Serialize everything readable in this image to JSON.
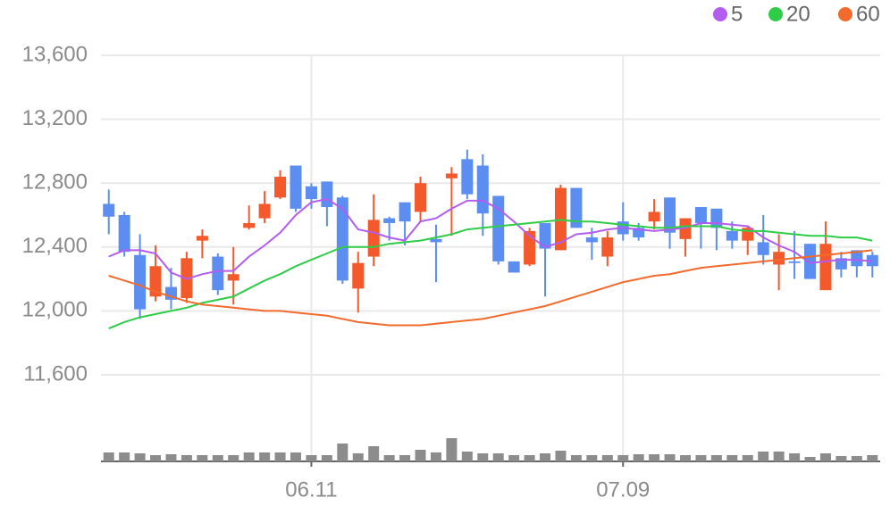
{
  "chart_data": {
    "type": "candlestick",
    "categories": [
      null,
      null,
      null,
      null,
      null,
      null,
      null,
      null,
      null,
      null,
      null,
      null,
      null,
      "06.11",
      null,
      null,
      null,
      null,
      null,
      null,
      null,
      null,
      null,
      null,
      null,
      null,
      null,
      null,
      null,
      null,
      null,
      null,
      null,
      "07.09",
      null,
      null,
      null,
      null,
      null,
      null,
      null,
      null,
      null,
      null,
      null,
      null,
      null,
      null,
      null,
      null
    ],
    "open": [
      12670,
      12600,
      12350,
      12090,
      12150,
      12080,
      12440,
      12340,
      12190,
      12520,
      12580,
      12710,
      12910,
      12780,
      12810,
      12710,
      12140,
      12340,
      12580,
      12680,
      12620,
      12450,
      12830,
      12950,
      12910,
      12720,
      12310,
      12290,
      12550,
      12380,
      12770,
      12460,
      12340,
      12560,
      12520,
      12560,
      12710,
      12450,
      12650,
      12640,
      12500,
      12440,
      12430,
      12290,
      12310,
      12420,
      12130,
      12330,
      12380,
      12350
    ],
    "high": [
      12760,
      12620,
      12480,
      12410,
      12270,
      12370,
      12510,
      12360,
      12400,
      12660,
      12750,
      12880,
      12910,
      12800,
      12810,
      12720,
      12370,
      12730,
      12590,
      12680,
      12840,
      12540,
      12900,
      13010,
      12980,
      12720,
      12310,
      12520,
      12550,
      12790,
      12770,
      12520,
      12500,
      12680,
      12550,
      12700,
      12710,
      12580,
      12650,
      12640,
      12560,
      12530,
      12600,
      12480,
      12500,
      12420,
      12560,
      12370,
      12380,
      12370
    ],
    "low": [
      12480,
      12340,
      11950,
      12060,
      12010,
      12050,
      12330,
      12100,
      12040,
      12510,
      12550,
      12700,
      12620,
      12640,
      12530,
      12170,
      11990,
      12280,
      12440,
      12410,
      12560,
      12180,
      12470,
      12700,
      12470,
      12290,
      12240,
      12280,
      12090,
      12380,
      12520,
      12320,
      12280,
      12440,
      12440,
      12510,
      12390,
      12340,
      12390,
      12380,
      12390,
      12350,
      12290,
      12130,
      12200,
      12200,
      12130,
      12210,
      12210,
      12210
    ],
    "close": [
      12590,
      12370,
      12010,
      12280,
      12070,
      12330,
      12470,
      12130,
      12230,
      12550,
      12670,
      12840,
      12640,
      12700,
      12650,
      12190,
      12300,
      12570,
      12550,
      12560,
      12800,
      12430,
      12860,
      12730,
      12610,
      12310,
      12240,
      12500,
      12390,
      12770,
      12520,
      12430,
      12460,
      12480,
      12460,
      12620,
      12490,
      12580,
      12550,
      12520,
      12440,
      12520,
      12350,
      12370,
      12300,
      12200,
      12420,
      12260,
      12280,
      12280
    ],
    "up_color": "#f4592c",
    "down_color": "#5b8ef0",
    "series": [
      {
        "name": "5",
        "color": "#b35cf0",
        "values": [
          12340,
          12380,
          12380,
          12360,
          12240,
          12200,
          12230,
          12250,
          12250,
          12340,
          12410,
          12490,
          12600,
          12680,
          12700,
          12640,
          12510,
          12490,
          12460,
          12440,
          12560,
          12580,
          12640,
          12690,
          12690,
          12640,
          12560,
          12470,
          12400,
          12430,
          12480,
          12490,
          12510,
          12520,
          12510,
          12500,
          12510,
          12520,
          12550,
          12550,
          12540,
          12530,
          12460,
          12410,
          12370,
          12300,
          12310,
          12320,
          12320,
          12310
        ]
      },
      {
        "name": "20",
        "color": "#2fcc48",
        "values": [
          11890,
          11930,
          11960,
          11980,
          12000,
          12020,
          12050,
          12070,
          12090,
          12140,
          12190,
          12230,
          12280,
          12320,
          12360,
          12400,
          12400,
          12400,
          12420,
          12430,
          12440,
          12460,
          12480,
          12510,
          12520,
          12530,
          12540,
          12550,
          12560,
          12570,
          12560,
          12560,
          12550,
          12540,
          12530,
          12520,
          12520,
          12530,
          12530,
          12530,
          12510,
          12500,
          12500,
          12490,
          12480,
          12470,
          12470,
          12460,
          12460,
          12440
        ]
      },
      {
        "name": "60",
        "color": "#f26a2c",
        "values": [
          12220,
          12190,
          12160,
          12120,
          12090,
          12060,
          12040,
          12030,
          12020,
          12010,
          12000,
          12000,
          11990,
          11980,
          11970,
          11950,
          11930,
          11920,
          11910,
          11910,
          11910,
          11920,
          11930,
          11940,
          11950,
          11970,
          11990,
          12010,
          12030,
          12060,
          12090,
          12120,
          12150,
          12180,
          12200,
          12220,
          12230,
          12250,
          12270,
          12280,
          12290,
          12300,
          12310,
          12320,
          12330,
          12340,
          12350,
          12360,
          12370,
          12380
        ]
      }
    ],
    "volume": {
      "color": "#8c8c8c",
      "values": [
        10,
        10,
        9,
        7,
        8,
        7,
        7,
        7,
        7,
        10,
        10,
        10,
        10,
        7,
        7,
        20,
        9,
        17,
        7,
        7,
        13,
        10,
        26,
        11,
        9,
        9,
        7,
        7,
        9,
        12,
        7,
        7,
        7,
        7,
        8,
        8,
        8,
        7,
        7,
        7,
        7,
        7,
        11,
        11,
        9,
        5,
        9,
        6,
        6,
        7
      ]
    },
    "ylim": [
      11600,
      13600
    ],
    "yticks": [
      {
        "value": 11600,
        "label": "11,600"
      },
      {
        "value": 12000,
        "label": "12,000"
      },
      {
        "value": 12400,
        "label": "12,400"
      },
      {
        "value": 12800,
        "label": "12,800"
      },
      {
        "value": 13200,
        "label": "13,200"
      },
      {
        "value": 13600,
        "label": "13,600"
      }
    ],
    "grid": true,
    "legend": "top-right"
  }
}
